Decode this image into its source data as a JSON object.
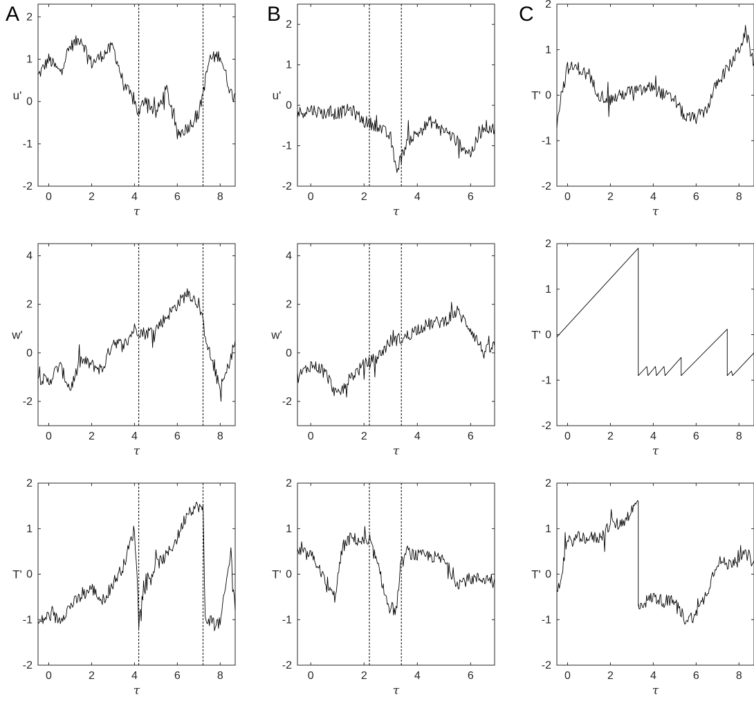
{
  "letters": [
    "A",
    "B",
    "C"
  ],
  "chart_data": [
    {
      "id": "A1",
      "type": "line",
      "column": "A",
      "ylabel": "u'",
      "xlabel": "τ",
      "xlim": [
        -0.5,
        8.7
      ],
      "ylim": [
        -2,
        2.3
      ],
      "xticks": [
        "0",
        "2",
        "4",
        "6",
        "8"
      ],
      "yticks": [
        "-2",
        "-1",
        "0",
        "1",
        "2"
      ],
      "vlines": [
        4.2,
        7.2
      ],
      "series": [
        {
          "x": [
            -0.5,
            0,
            0.5,
            1,
            1.5,
            2,
            2.5,
            3,
            3.5,
            4,
            4.2,
            4.5,
            5,
            5.5,
            6,
            6.5,
            7,
            7.5,
            8,
            8.5,
            8.7
          ],
          "y": [
            0.6,
            1,
            0.7,
            1.3,
            1.5,
            0.9,
            1.1,
            1.3,
            0.4,
            0,
            -0.3,
            0.1,
            -0.3,
            0.3,
            -0.8,
            -0.6,
            -0.3,
            1,
            1.1,
            0.2,
            0.2
          ]
        }
      ]
    },
    {
      "id": "A2",
      "type": "line",
      "column": "A",
      "ylabel": "w'",
      "xlabel": "τ",
      "xlim": [
        -0.5,
        8.7
      ],
      "ylim": [
        -3,
        4.5
      ],
      "xticks": [
        "0",
        "2",
        "4",
        "6",
        "8"
      ],
      "yticks": [
        "-2",
        "0",
        "2",
        "4"
      ],
      "vlines": [
        4.2,
        7.2
      ],
      "series": [
        {
          "x": [
            -0.5,
            0,
            0.5,
            1,
            1.5,
            2,
            2.5,
            3,
            3.5,
            4,
            4.5,
            5,
            5.5,
            6,
            6.5,
            7,
            7.5,
            8,
            8.3,
            8.7
          ],
          "y": [
            -1,
            -1.2,
            -0.5,
            -1.5,
            -0.3,
            -0.5,
            -0.7,
            0.5,
            0.3,
            1,
            0.8,
            1,
            1.5,
            2,
            2.5,
            2,
            0,
            -1.5,
            -0.8,
            0.5
          ]
        }
      ]
    },
    {
      "id": "A3",
      "type": "line",
      "column": "A",
      "ylabel": "T'",
      "xlabel": "τ",
      "xlim": [
        -0.5,
        8.7
      ],
      "ylim": [
        -2,
        2
      ],
      "xticks": [
        "0",
        "2",
        "4",
        "6",
        "8"
      ],
      "yticks": [
        "-2",
        "-1",
        "0",
        "1",
        "2"
      ],
      "vlines": [
        4.2,
        7.2
      ],
      "series": [
        {
          "x": [
            -0.5,
            0,
            0.5,
            1,
            1.5,
            2,
            2.5,
            3,
            3.5,
            4,
            4.2,
            4.5,
            5,
            5.5,
            6,
            6.5,
            7,
            7.2,
            7.3,
            7.5,
            8,
            8.5,
            8.7
          ],
          "y": [
            -1.1,
            -0.9,
            -1,
            -0.7,
            -0.5,
            -0.3,
            -0.6,
            -0.2,
            0.2,
            1,
            -0.8,
            -0.3,
            0.2,
            0.4,
            0.8,
            1.4,
            1.5,
            1.4,
            -1,
            -1,
            -1.1,
            0.5,
            -0.8
          ]
        }
      ]
    },
    {
      "id": "B1",
      "type": "line",
      "column": "B",
      "ylabel": "u'",
      "xlabel": "τ",
      "xlim": [
        -0.5,
        6.9
      ],
      "ylim": [
        -2,
        2.5
      ],
      "xticks": [
        "0",
        "2",
        "4",
        "6"
      ],
      "yticks": [
        "-2",
        "-1",
        "0",
        "1",
        "2"
      ],
      "vlines": [
        2.2,
        3.4
      ],
      "series": [
        {
          "x": [
            -0.5,
            0,
            0.5,
            1,
            1.5,
            2,
            2.5,
            3,
            3.2,
            3.4,
            3.6,
            4,
            4.5,
            5,
            5.5,
            6,
            6.5,
            6.9
          ],
          "y": [
            -0.2,
            -0.1,
            -0.2,
            -0.2,
            -0.1,
            -0.4,
            -0.5,
            -0.8,
            -1.6,
            -1.3,
            -0.9,
            -0.7,
            -0.4,
            -0.6,
            -0.9,
            -1.2,
            -0.5,
            -0.6
          ]
        }
      ]
    },
    {
      "id": "B2",
      "type": "line",
      "column": "B",
      "ylabel": "w'",
      "xlabel": "τ",
      "xlim": [
        -0.5,
        6.9
      ],
      "ylim": [
        -3,
        4.5
      ],
      "xticks": [
        "0",
        "2",
        "4",
        "6"
      ],
      "yticks": [
        "-2",
        "0",
        "2",
        "4"
      ],
      "vlines": [
        2.2,
        3.4
      ],
      "series": [
        {
          "x": [
            -0.5,
            0,
            0.5,
            1,
            1.5,
            2,
            2.5,
            3,
            3.5,
            4,
            4.5,
            5,
            5.5,
            6,
            6.5,
            6.9
          ],
          "y": [
            -1,
            -0.5,
            -0.7,
            -1.8,
            -1,
            -0.5,
            -0.2,
            0.5,
            0.6,
            1,
            1.2,
            1.3,
            1.7,
            1,
            0,
            0.3
          ]
        }
      ]
    },
    {
      "id": "B3",
      "type": "line",
      "column": "B",
      "ylabel": "T'",
      "xlabel": "τ",
      "xlim": [
        -0.5,
        6.9
      ],
      "ylim": [
        -2,
        2
      ],
      "xticks": [
        "0",
        "2",
        "4",
        "6"
      ],
      "yticks": [
        "-2",
        "-1",
        "0",
        "1",
        "2"
      ],
      "vlines": [
        2.2,
        3.4
      ],
      "series": [
        {
          "x": [
            -0.5,
            0,
            0.3,
            0.6,
            0.9,
            1.2,
            1.5,
            2,
            2.3,
            2.6,
            2.9,
            3.2,
            3.4,
            3.6,
            4,
            4.5,
            5,
            5.5,
            6,
            6.5,
            6.9
          ],
          "y": [
            0.5,
            0.4,
            0.2,
            -0.3,
            -0.5,
            0.6,
            0.8,
            0.7,
            0.6,
            0,
            -0.7,
            -0.8,
            0.2,
            0.5,
            0.4,
            0.4,
            0.3,
            -0.2,
            -0.1,
            -0.1,
            -0.1
          ]
        }
      ]
    },
    {
      "id": "C1",
      "type": "line",
      "column": "C",
      "ylabel": "T'",
      "xlabel": "τ",
      "xlim": [
        -0.5,
        8.7
      ],
      "ylim": [
        -2,
        2
      ],
      "xticks": [
        "0",
        "2",
        "4",
        "6",
        "8"
      ],
      "yticks": [
        "-2",
        "-1",
        "0",
        "1",
        "2"
      ],
      "vlines": [],
      "series": [
        {
          "x": [
            -0.5,
            -0.3,
            0,
            0.5,
            1,
            1.5,
            2,
            2.5,
            3,
            3.5,
            4,
            4.5,
            5,
            5.5,
            6,
            6.5,
            7,
            7.5,
            8,
            8.3,
            8.7
          ],
          "y": [
            -0.6,
            0,
            0.6,
            0.6,
            0.4,
            0,
            -0.1,
            0,
            0.1,
            0.1,
            0.2,
            0,
            -0.1,
            -0.5,
            -0.5,
            -0.3,
            0.3,
            0.6,
            1,
            1.4,
            0.7
          ]
        }
      ]
    },
    {
      "id": "C2",
      "type": "line",
      "column": "C",
      "ylabel": "T'",
      "xlabel": "τ",
      "xlim": [
        -0.5,
        8.7
      ],
      "ylim": [
        -2,
        2
      ],
      "xticks": [
        "0",
        "2",
        "4",
        "6",
        "8"
      ],
      "yticks": [
        "-2",
        "-1",
        "0",
        "1",
        "2"
      ],
      "vlines": [],
      "series": [
        {
          "x": [
            -0.5,
            3.3,
            3.3,
            3.7,
            3.75,
            4.1,
            4.15,
            4.5,
            4.55,
            5.3,
            5.3,
            7.45,
            7.45,
            7.65,
            7.7,
            8.7
          ],
          "y": [
            -0.05,
            1.9,
            -0.9,
            -0.7,
            -0.9,
            -0.7,
            -0.9,
            -0.7,
            -0.9,
            -0.5,
            -0.9,
            0.12,
            -0.9,
            -0.8,
            -0.9,
            -0.4
          ]
        }
      ]
    },
    {
      "id": "C3",
      "type": "line",
      "column": "C",
      "ylabel": "T'",
      "xlabel": "τ",
      "xlim": [
        -0.5,
        8.7
      ],
      "ylim": [
        -2,
        2
      ],
      "xticks": [
        "0",
        "2",
        "4",
        "6",
        "8"
      ],
      "yticks": [
        "-2",
        "-1",
        "0",
        "1",
        "2"
      ],
      "vlines": [],
      "series": [
        {
          "x": [
            -0.5,
            -0.3,
            0,
            0.5,
            1,
            1.5,
            2,
            2.5,
            3,
            3.3,
            3.3,
            4,
            4.5,
            5,
            5.5,
            6,
            6.5,
            7,
            7.5,
            8,
            8.5,
            8.7
          ],
          "y": [
            -0.5,
            0,
            0.7,
            0.8,
            0.8,
            0.8,
            1.1,
            1.1,
            1.4,
            1.6,
            -0.7,
            -0.5,
            -0.6,
            -0.6,
            -1,
            -0.9,
            -0.4,
            0.3,
            0.2,
            0.4,
            0.4,
            0.3
          ]
        }
      ]
    }
  ]
}
